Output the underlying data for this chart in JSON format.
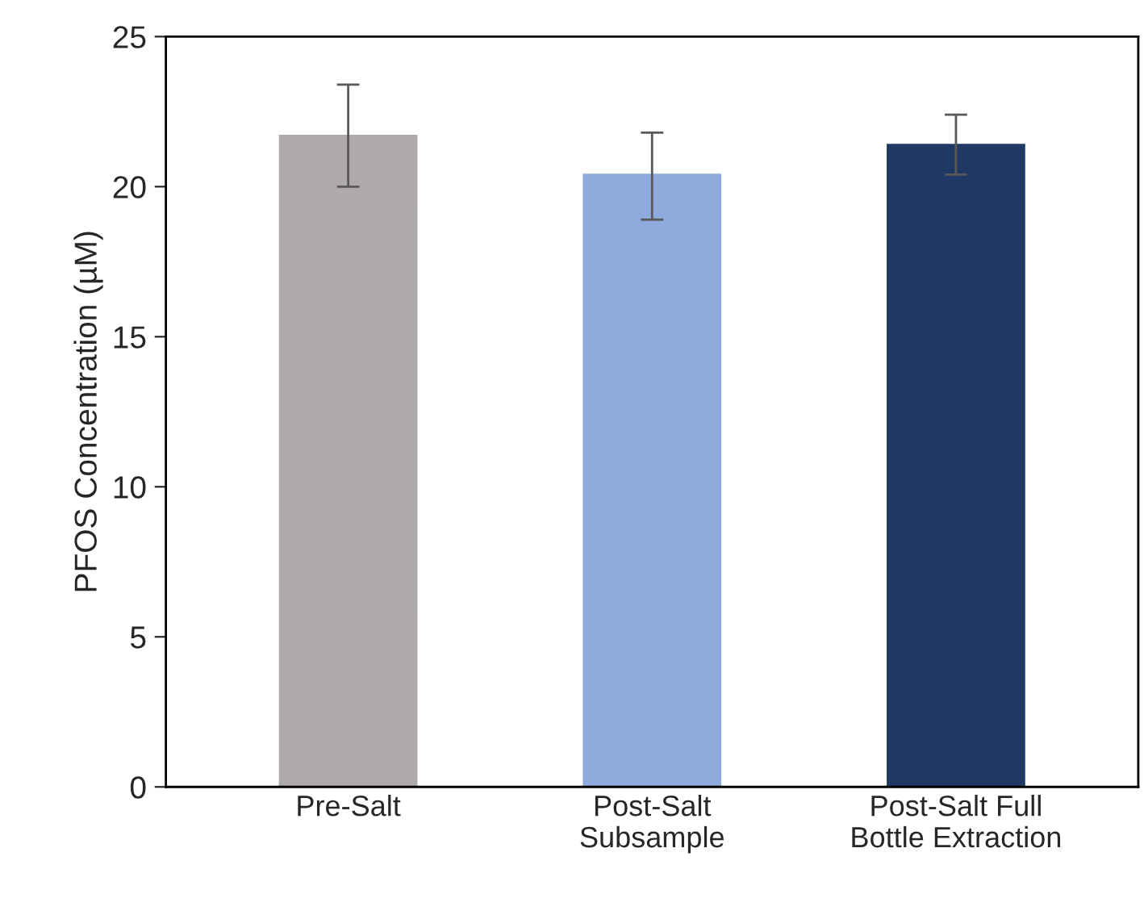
{
  "chart_data": {
    "type": "bar",
    "ylabel": "PFOS Concentration (µM)",
    "categories": [
      "Pre-Salt",
      "Post-Salt\nSubsample",
      "Post-Salt Full\nBottle Extraction"
    ],
    "values": [
      21.7,
      20.4,
      21.4
    ],
    "colors": [
      "#aeaaaa",
      "#8faadc",
      "#1f3864"
    ],
    "errors": [
      [
        20.0,
        23.4
      ],
      [
        18.9,
        21.8
      ],
      [
        20.4,
        22.4
      ]
    ],
    "ylim": [
      0,
      25
    ],
    "yticks": [
      0,
      5,
      10,
      15,
      20,
      25
    ],
    "grid": false,
    "legend": false
  }
}
